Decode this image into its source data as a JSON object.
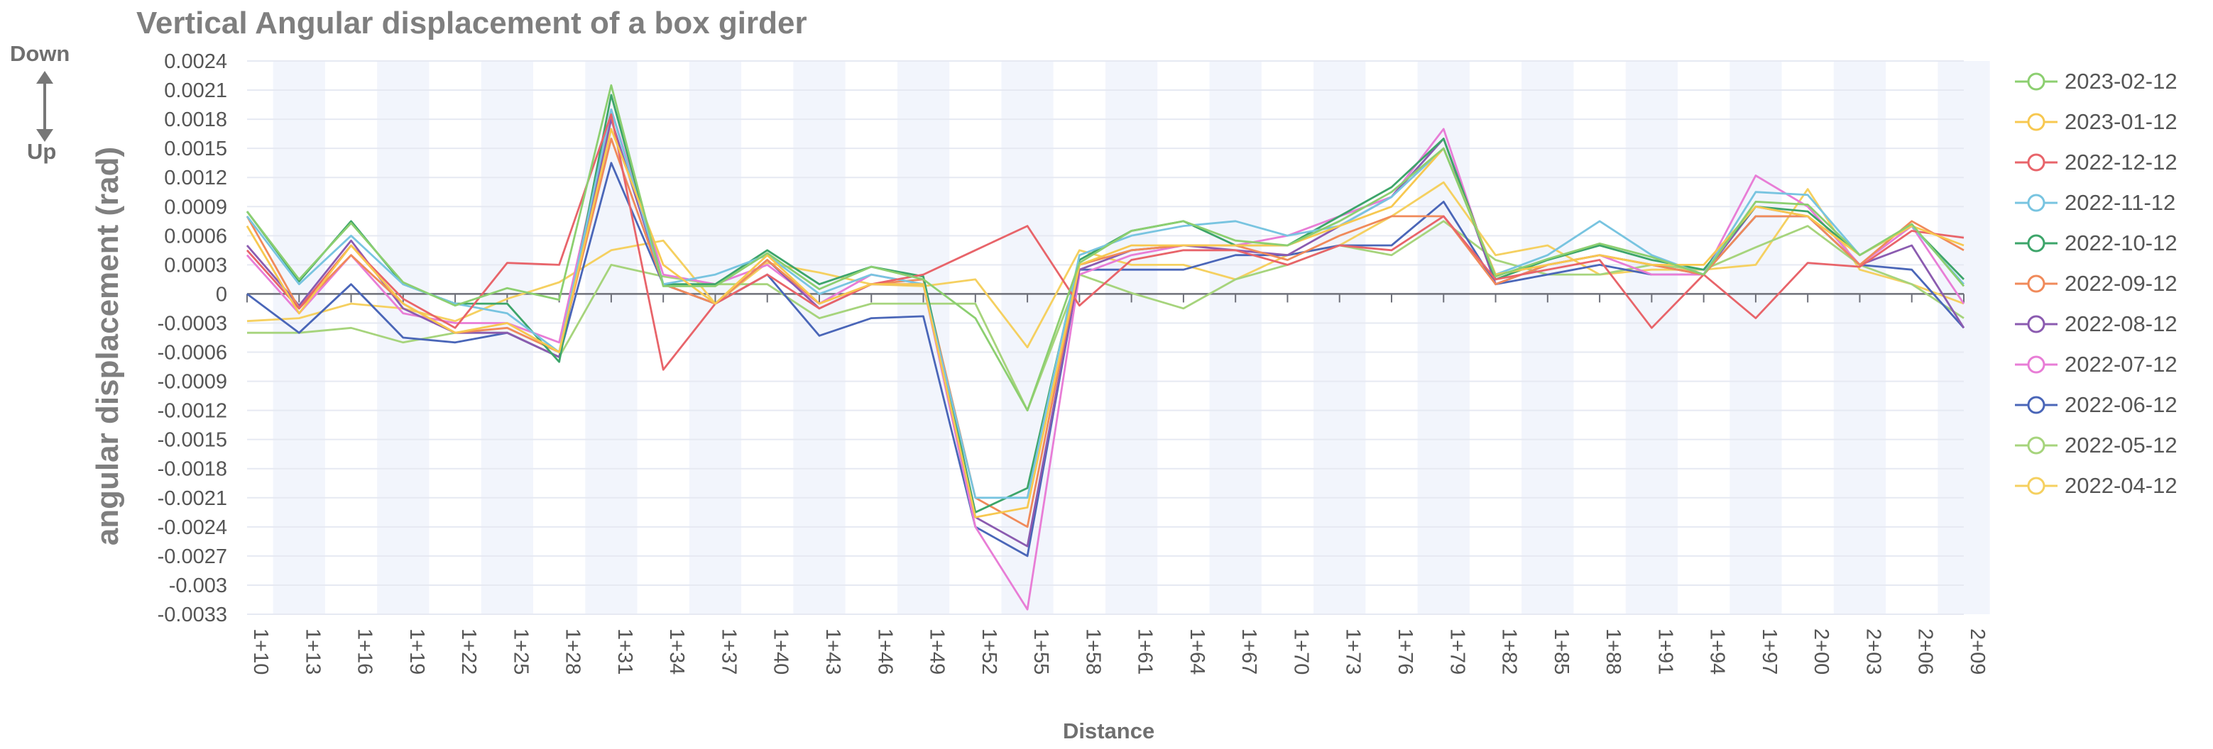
{
  "chart_data": {
    "type": "line",
    "title": "Vertical Angular displacement of a box girder",
    "xlabel": "Distance",
    "ylabel": "angular displacement (rad)",
    "direction_labels": {
      "down": "Down",
      "up": "Up"
    },
    "y_ticks": [
      "0.0024",
      "0.0021",
      "0.0018",
      "0.0015",
      "0.0012",
      "0.0009",
      "0.0006",
      "0.0003",
      "0",
      "-0.0003",
      "-0.0006",
      "-0.0009",
      "-0.0012",
      "-0.0015",
      "-0.0018",
      "-0.0021",
      "-0.0024",
      "-0.0027",
      "-0.003",
      "-0.0033"
    ],
    "ylim": [
      -0.0033,
      0.0024
    ],
    "grid": true,
    "legend_position": "right",
    "categories": [
      "1+10",
      "1+13",
      "1+16",
      "1+19",
      "1+22",
      "1+25",
      "1+28",
      "1+31",
      "1+34",
      "1+37",
      "1+40",
      "1+43",
      "1+46",
      "1+49",
      "1+52",
      "1+55",
      "1+58",
      "1+61",
      "1+64",
      "1+67",
      "1+70",
      "1+73",
      "1+76",
      "1+79",
      "1+82",
      "1+85",
      "1+88",
      "1+91",
      "1+94",
      "1+97",
      "2+00",
      "2+03",
      "2+06",
      "2+09"
    ],
    "series": [
      {
        "name": "2023-02-12",
        "color": "#8ccf70",
        "values": [
          0.00085,
          0.00015,
          0.00073,
          0.00012,
          -0.00012,
          6e-05,
          -6e-05,
          0.00215,
          8e-05,
          8e-05,
          0.00042,
          5e-05,
          0.00028,
          0.00015,
          -0.00025,
          -0.0012,
          0.00032,
          0.00065,
          0.00075,
          0.00055,
          0.0005,
          0.00075,
          0.00105,
          0.0015,
          0.00018,
          0.00036,
          0.00052,
          0.00038,
          0.0002,
          0.00095,
          0.00092,
          0.0004,
          0.00072,
          8e-05
        ]
      },
      {
        "name": "2023-01-12",
        "color": "#f7c850",
        "values": [
          0.0007,
          -0.0002,
          0.0005,
          -0.0001,
          -0.0004,
          -0.0003,
          -0.0006,
          0.0017,
          0.0003,
          -0.0001,
          0.0004,
          -0.0001,
          0.0001,
          0.0001,
          -0.0023,
          -0.0022,
          0.0003,
          0.0005,
          0.0005,
          0.0005,
          0.0005,
          0.0007,
          0.0009,
          0.0015,
          0.0002,
          0.0003,
          0.0004,
          0.0003,
          0.0003,
          0.0009,
          0.0008,
          0.0004,
          0.0007,
          0.0005
        ]
      },
      {
        "name": "2022-12-12",
        "color": "#e8646a",
        "values": [
          0.00045,
          -0.00015,
          0.0005,
          -5e-05,
          -0.00035,
          0.00032,
          0.0003,
          0.00185,
          -0.00078,
          -0.0001,
          0.0002,
          -0.00015,
          0.0001,
          0.0002,
          0.00045,
          0.0007,
          -0.00012,
          0.00035,
          0.00045,
          0.00045,
          0.0003,
          0.0005,
          0.00045,
          0.0008,
          0.00015,
          0.00025,
          0.00035,
          -0.00035,
          0.0002,
          -0.00025,
          0.00032,
          0.00028,
          0.00065,
          0.00058
        ]
      },
      {
        "name": "2022-11-12",
        "color": "#78c4e0",
        "values": [
          0.0008,
          0.0001,
          0.0006,
          0.0001,
          -0.0001,
          -0.0002,
          -0.0006,
          0.0019,
          0.0001,
          0.0002,
          0.0004,
          0.0,
          0.0002,
          0.0001,
          -0.0021,
          -0.0021,
          0.0004,
          0.0006,
          0.0007,
          0.00075,
          0.0006,
          0.0007,
          0.001,
          0.0015,
          0.0002,
          0.0004,
          0.00075,
          0.0004,
          0.0002,
          0.00105,
          0.00102,
          0.0004,
          0.0007,
          0.0001
        ]
      },
      {
        "name": "2022-10-12",
        "color": "#3da56a",
        "values": [
          0.00085,
          0.00013,
          0.00075,
          0.0001,
          -0.0001,
          -0.0001,
          -0.0007,
          0.00205,
          0.0001,
          0.0001,
          0.00045,
          0.0001,
          0.00028,
          0.00018,
          -0.00225,
          -0.002,
          0.00035,
          0.00065,
          0.00075,
          0.0005,
          0.0005,
          0.0008,
          0.0011,
          0.0016,
          0.00015,
          0.00035,
          0.0005,
          0.00035,
          0.00025,
          0.0009,
          0.00085,
          0.0004,
          0.0007,
          0.00015
        ]
      },
      {
        "name": "2022-09-12",
        "color": "#f08a5a",
        "values": [
          0.0008,
          -0.00015,
          0.0004,
          -0.0001,
          -0.0004,
          -0.00035,
          -0.0006,
          0.0016,
          0.0001,
          -0.0001,
          0.00035,
          -0.0001,
          0.0001,
          0.00015,
          -0.0021,
          -0.0024,
          0.0003,
          0.00045,
          0.0005,
          0.0005,
          0.00035,
          0.0006,
          0.0008,
          0.0008,
          0.0001,
          0.0003,
          0.0004,
          0.0003,
          0.0002,
          0.0008,
          0.0008,
          0.0003,
          0.00075,
          0.00045
        ]
      },
      {
        "name": "2022-08-12",
        "color": "#8b5bb0",
        "values": [
          0.0005,
          -0.00012,
          0.00055,
          -0.00015,
          -0.0004,
          -0.0004,
          -0.00065,
          0.0018,
          0.0001,
          -0.0001,
          0.00035,
          -0.00015,
          0.0001,
          0.0001,
          -0.0023,
          -0.0026,
          0.00025,
          0.00045,
          0.0005,
          0.00045,
          0.0004,
          0.0007,
          0.001,
          0.0016,
          0.0001,
          0.0003,
          0.0004,
          0.0003,
          0.0002,
          0.0009,
          0.0008,
          0.0003,
          0.0005,
          -0.00035
        ]
      },
      {
        "name": "2022-07-12",
        "color": "#e87dd6",
        "values": [
          0.0004,
          -0.0002,
          0.0004,
          -0.0002,
          -0.0003,
          -0.0003,
          -0.0005,
          0.0019,
          0.0002,
          0.0001,
          0.0003,
          -0.0001,
          0.0002,
          0.0001,
          -0.0024,
          -0.00325,
          0.0002,
          0.0004,
          0.0005,
          0.0005,
          0.0006,
          0.0008,
          0.001,
          0.0017,
          0.0001,
          0.0003,
          0.0004,
          0.0002,
          0.0002,
          0.00122,
          0.0009,
          0.0003,
          0.0007,
          -0.0001
        ]
      },
      {
        "name": "2022-06-12",
        "color": "#4a66b8",
        "values": [
          0.0,
          -0.0004,
          0.0001,
          -0.00045,
          -0.0005,
          -0.0004,
          -0.00065,
          0.00135,
          0.0001,
          -0.0001,
          0.0002,
          -0.00043,
          -0.00025,
          -0.00023,
          -0.0024,
          -0.0027,
          0.00025,
          0.00025,
          0.00025,
          0.0004,
          0.0004,
          0.0005,
          0.0005,
          0.00095,
          0.0001,
          0.0002,
          0.0003,
          0.0002,
          0.0002,
          0.0008,
          0.0008,
          0.0003,
          0.00025,
          -0.00035
        ]
      },
      {
        "name": "2022-05-12",
        "color": "#a6d47c",
        "values": [
          -0.0004,
          -0.0004,
          -0.00035,
          -0.0005,
          -0.0004,
          -0.0004,
          -0.00065,
          0.0003,
          0.00018,
          0.0001,
          0.0001,
          -0.00025,
          -0.0001,
          -0.0001,
          -0.0001,
          -0.0012,
          0.0002,
          1e-05,
          -0.00015,
          0.00015,
          0.0003,
          0.0005,
          0.0004,
          0.00075,
          0.00035,
          0.0002,
          0.0002,
          0.0003,
          0.00025,
          0.00048,
          0.0007,
          0.0003,
          0.0001,
          -0.00025
        ]
      },
      {
        "name": "2022-04-12",
        "color": "#f5d060",
        "values": [
          -0.00028,
          -0.00025,
          -0.0001,
          -0.00015,
          -0.00028,
          -5e-05,
          0.00012,
          0.00045,
          0.00055,
          -0.0001,
          0.00032,
          0.00022,
          0.0001,
          8e-05,
          0.00015,
          -0.00055,
          0.00045,
          0.0003,
          0.0003,
          0.00015,
          0.0004,
          0.0005,
          0.0008,
          0.00115,
          0.0004,
          0.0005,
          0.0002,
          0.00025,
          0.00025,
          0.0003,
          0.00108,
          0.00025,
          0.0001,
          -0.0001
        ]
      }
    ]
  }
}
